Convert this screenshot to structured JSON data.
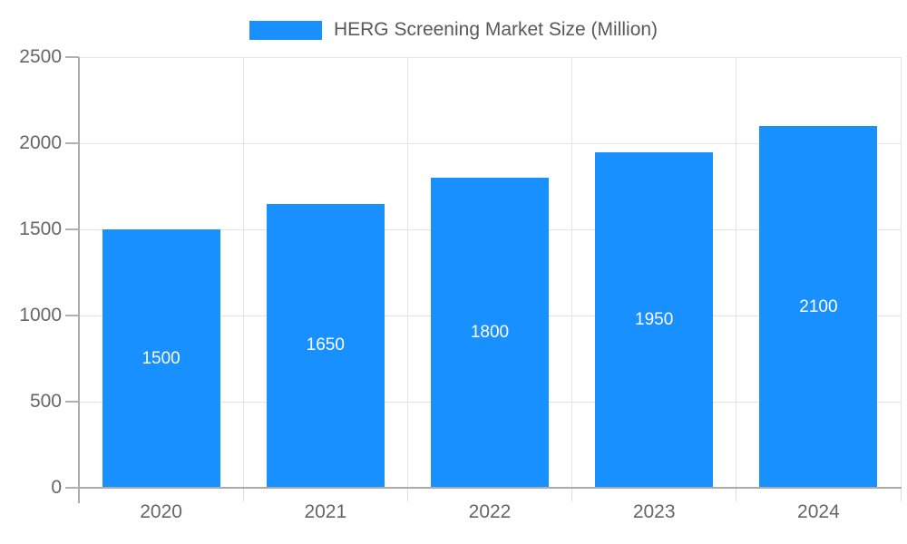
{
  "chart_data": {
    "type": "bar",
    "title": "HERG Screening Market Size (Million)",
    "categories": [
      "2020",
      "2021",
      "2022",
      "2023",
      "2024"
    ],
    "values": [
      1500,
      1650,
      1800,
      1950,
      2100
    ],
    "xlabel": "",
    "ylabel": "",
    "ylim": [
      0,
      2500
    ],
    "yticks": [
      0,
      500,
      1000,
      1500,
      2000,
      2500
    ],
    "grid": true,
    "legend_position": "top-center",
    "value_labels": "inside-center",
    "colors": {
      "bar": "#1890ff",
      "value_label": "#ffffff",
      "grid": "#e3e3e3",
      "axis": "#ababab",
      "axis_text": "#666666",
      "legend_text": "#595959",
      "background": "#ffffff"
    }
  }
}
